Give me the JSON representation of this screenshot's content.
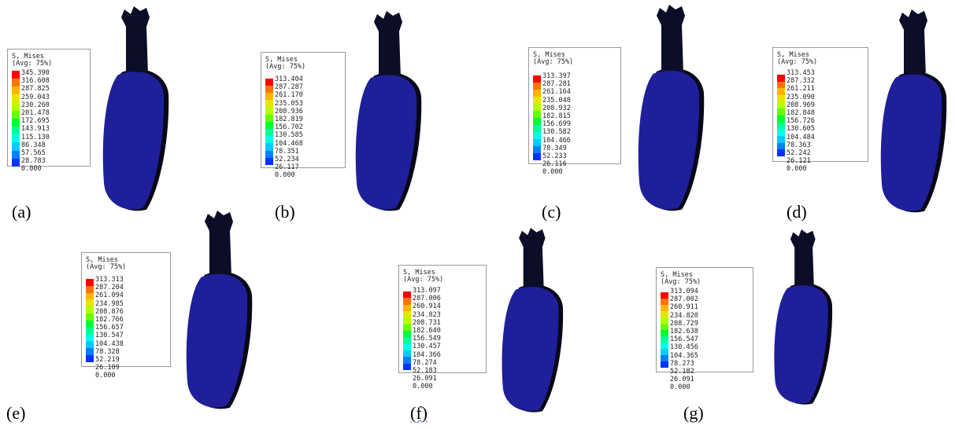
{
  "legend_title": "S, Mises",
  "legend_subtitle": "(Avg: 75%)",
  "colormap": [
    "#ff0000",
    "#ff7300",
    "#ffb400",
    "#e6e600",
    "#b4ff00",
    "#66ff00",
    "#00ff33",
    "#00ff99",
    "#00ffe6",
    "#00ccff",
    "#0080ff",
    "#0033ff"
  ],
  "mesh_color": "#1f1f99",
  "post_color": "#0b0e26",
  "panels": [
    {
      "label": "(a)",
      "values": [
        "345.390",
        "316.608",
        "287.825",
        "259.043",
        "230.260",
        "201.478",
        "172.695",
        "143.913",
        "115.130",
        "86.348",
        "57.565",
        "28.783",
        "0.000"
      ]
    },
    {
      "label": "(b)",
      "values": [
        "313.404",
        "287.287",
        "261.170",
        "235.053",
        "208.936",
        "182.819",
        "156.702",
        "130.585",
        "104.468",
        "78.351",
        "52.234",
        "26.117",
        "0.000"
      ]
    },
    {
      "label": "(c)",
      "values": [
        "313.397",
        "287.281",
        "261.164",
        "235.048",
        "208.932",
        "182.815",
        "156.699",
        "130.582",
        "104.466",
        "78.349",
        "52.233",
        "26.116",
        "0.000"
      ]
    },
    {
      "label": "(d)",
      "values": [
        "313.453",
        "287.332",
        "261.211",
        "235.090",
        "208.969",
        "182.848",
        "156.726",
        "130.605",
        "104.484",
        "78.363",
        "52.242",
        "26.121",
        "0.000"
      ]
    },
    {
      "label": "(e)",
      "values": [
        "313.313",
        "287.204",
        "261.094",
        "234.985",
        "208.876",
        "182.766",
        "156.657",
        "130.547",
        "104.438",
        "78.328",
        "52.219",
        "26.109",
        "0.000"
      ]
    },
    {
      "label": "(f)",
      "values": [
        "313.097",
        "287.006",
        "260.914",
        "234.823",
        "208.731",
        "182.640",
        "156.549",
        "130.457",
        "104.366",
        "78.274",
        "52.183",
        "26.091",
        "0.000"
      ]
    },
    {
      "label": "(g)",
      "values": [
        "313.094",
        "287.002",
        "260.911",
        "234.820",
        "208.729",
        "182.638",
        "156.547",
        "130.456",
        "104.365",
        "78.273",
        "52.182",
        "26.091",
        "0.000"
      ]
    }
  ]
}
